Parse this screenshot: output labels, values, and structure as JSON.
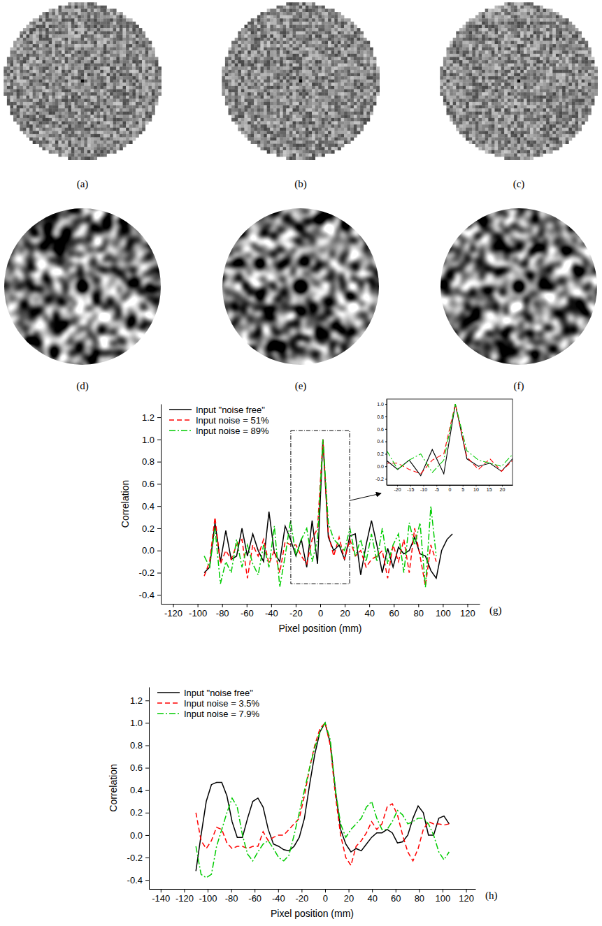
{
  "images": {
    "labels": [
      "(a)",
      "(b)",
      "(c)",
      "(d)",
      "(e)",
      "(f)"
    ]
  },
  "chart_data": [
    {
      "type": "line",
      "xlabel": "Pixel position (mm)",
      "ylabel": "Correlation",
      "annotations": [
        "(g)"
      ],
      "xlim": [
        -130,
        130
      ],
      "ylim": [
        -0.48,
        1.32
      ],
      "xticks": [
        -120,
        -100,
        -80,
        -60,
        -40,
        -20,
        0,
        20,
        40,
        60,
        80,
        100,
        120
      ],
      "yticks": [
        -0.4,
        -0.2,
        {
          "value": 0,
          "label": "0.0"
        },
        0.2,
        0.4,
        0.6,
        0.8,
        {
          "value": 1,
          "label": "1.0"
        },
        1.2
      ],
      "legend": "upper left",
      "series": [
        {
          "name": "Input \"noise free\"",
          "color": "#000000",
          "line_style": "solid",
          "x": [
            -94.6,
            -90.2,
            -85.8,
            -81.4,
            -77,
            -72.6,
            -68.2,
            -63.8,
            -59.4,
            -55,
            -50.6,
            -46.2,
            -41.8,
            -37.4,
            -33,
            -28.6,
            -24.2,
            -19.8,
            -15.4,
            -11,
            -6.6,
            -2.2,
            2.2,
            6.6,
            11,
            15.4,
            19.8,
            24.2,
            28.6,
            33,
            37.4,
            41.8,
            46.2,
            50.6,
            55,
            59.4,
            63.8,
            68.2,
            72.6,
            77,
            81.4,
            85.8,
            90.2,
            94.6,
            99,
            103.4,
            107.8
          ],
          "values": [
            -0.2,
            -0.15,
            0.25,
            -0.1,
            0.18,
            -0.08,
            -0.05,
            0.2,
            -0.05,
            0.15,
            0.0,
            -0.1,
            0.35,
            -0.02,
            -0.1,
            0.22,
            0.1,
            -0.05,
            0.1,
            -0.15,
            0.27,
            -0.12,
            1.0,
            0.12,
            0.0,
            0.05,
            -0.08,
            0.13,
            0.15,
            -0.22,
            0.05,
            0.27,
            0.05,
            -0.2,
            0.02,
            -0.15,
            0.03,
            -0.03,
            0.0,
            0.12,
            -0.03,
            -0.05,
            -0.18,
            -0.25,
            0.0,
            0.1,
            0.15
          ]
        },
        {
          "name": "Input noise = 51%",
          "color": "#ff0000",
          "line_style": "dashed",
          "x": [
            -94.6,
            -90.2,
            -85.8,
            -81.4,
            -77,
            -72.6,
            -68.2,
            -63.8,
            -59.4,
            -55,
            -50.6,
            -46.2,
            -41.8,
            -37.4,
            -33,
            -28.6,
            -24.2,
            -19.8,
            -15.4,
            -11,
            -6.6,
            -2.2,
            2.2,
            6.6,
            11,
            15.4,
            19.8,
            24.2,
            28.6,
            33,
            37.4,
            41.8,
            46.2,
            50.6,
            55,
            59.4,
            63.8,
            68.2,
            72.6,
            77,
            81.4,
            85.8,
            90.2,
            94.6
          ],
          "values": [
            -0.23,
            -0.1,
            0.3,
            -0.12,
            0.0,
            -0.08,
            0.05,
            0.1,
            -0.25,
            0.05,
            -0.05,
            0.1,
            -0.12,
            0.0,
            -0.2,
            0.08,
            0.05,
            0.05,
            -0.05,
            -0.12,
            0.1,
            0.2,
            1.0,
            0.15,
            -0.05,
            0.12,
            -0.08,
            0.1,
            -0.05,
            0.0,
            -0.15,
            -0.08,
            -0.05,
            0.0,
            -0.25,
            0.05,
            -0.1,
            0.1,
            -0.2,
            0.2,
            -0.05,
            -0.32,
            0.05,
            -0.1
          ]
        },
        {
          "name": "Input noise = 89%",
          "color": "#00cc00",
          "line_style": "dashdot",
          "x": [
            -94.6,
            -90.2,
            -85.8,
            -81.4,
            -77,
            -72.6,
            -68.2,
            -63.8,
            -59.4,
            -55,
            -50.6,
            -46.2,
            -41.8,
            -37.4,
            -33,
            -28.6,
            -24.2,
            -19.8,
            -15.4,
            -11,
            -6.6,
            -2.2,
            2.2,
            6.6,
            11,
            15.4,
            19.8,
            24.2,
            28.6,
            33,
            37.4,
            41.8,
            46.2,
            50.6,
            55,
            59.4,
            63.8,
            68.2,
            72.6,
            77,
            81.4,
            85.8,
            90.2,
            94.6
          ],
          "values": [
            -0.05,
            -0.15,
            0.2,
            -0.3,
            -0.1,
            -0.2,
            0.1,
            -0.15,
            0.05,
            -0.12,
            -0.22,
            0.05,
            -0.15,
            0.22,
            -0.33,
            -0.05,
            0.27,
            -0.05,
            0.1,
            0.2,
            -0.1,
            0.1,
            1.0,
            0.25,
            0.1,
            0.05,
            0.0,
            0.2,
            -0.05,
            0.1,
            -0.1,
            0.15,
            -0.1,
            0.2,
            -0.12,
            0.05,
            0.15,
            -0.2,
            0.25,
            0.05,
            0.25,
            -0.33,
            0.4,
            -0.05
          ]
        }
      ]
    },
    {
      "type": "line",
      "xlim": [
        -24,
        24
      ],
      "ylim": [
        -0.3,
        1.08
      ],
      "xticks": [
        -20,
        -15,
        -10,
        -5,
        0,
        5,
        10,
        15,
        20
      ],
      "yticks": [
        -0.2,
        {
          "value": 0,
          "label": "0.0"
        },
        0.2,
        0.4,
        0.6,
        0.8,
        {
          "value": 1,
          "label": "1.0"
        }
      ]
    },
    {
      "type": "line",
      "xlabel": "Pixel position (mm)",
      "ylabel": "Correlation",
      "annotations": [
        "(h)"
      ],
      "xlim": [
        -150,
        128
      ],
      "ylim": [
        -0.48,
        1.32
      ],
      "xticks": [
        -140,
        -120,
        -100,
        -80,
        -60,
        -40,
        -20,
        0,
        20,
        40,
        60,
        80,
        100,
        120
      ],
      "yticks": [
        -0.4,
        -0.2,
        {
          "value": 0,
          "label": "0.0"
        },
        0.2,
        0.4,
        0.6,
        0.8,
        {
          "value": 1,
          "label": "1.0"
        },
        1.2
      ],
      "legend": "upper left",
      "x": [
        -110,
        -105.6,
        -101.2,
        -96.8,
        -92.4,
        -88,
        -83.6,
        -79.2,
        -74.8,
        -70.4,
        -66,
        -61.6,
        -57.2,
        -52.8,
        -48.4,
        -44,
        -39.6,
        -35.2,
        -30.8,
        -26.4,
        -22,
        -17.6,
        -13.2,
        -8.8,
        -4.4,
        0,
        4.4,
        8.8,
        13.2,
        17.6,
        22,
        26.4,
        30.8,
        35.2,
        39.6,
        44,
        48.4,
        52.8,
        57.2,
        61.6,
        66,
        70.4,
        74.8,
        79.2,
        83.6,
        88,
        92.4,
        96.8,
        101.2,
        105.6
      ],
      "series": [
        {
          "name": "Input \"noise free\"",
          "color": "#000000",
          "line_style": "solid",
          "values": [
            -0.32,
            0.0,
            0.3,
            0.45,
            0.47,
            0.47,
            0.35,
            0.12,
            -0.02,
            -0.02,
            0.15,
            0.3,
            0.33,
            0.25,
            0.05,
            -0.08,
            -0.1,
            -0.13,
            -0.14,
            -0.1,
            -0.02,
            0.15,
            0.45,
            0.72,
            0.92,
            1.0,
            0.82,
            0.4,
            0.05,
            -0.08,
            -0.15,
            -0.12,
            -0.14,
            -0.08,
            -0.02,
            0.02,
            0.02,
            0.05,
            0.02,
            -0.07,
            -0.06,
            0.0,
            0.15,
            0.26,
            0.2,
            0.0,
            0.0,
            0.15,
            0.17,
            0.1
          ]
        },
        {
          "name": "Input noise = 3.5%",
          "color": "#ff0000",
          "line_style": "dashed",
          "values": [
            0.2,
            -0.05,
            -0.12,
            -0.05,
            0.07,
            0.05,
            -0.07,
            -0.12,
            -0.1,
            -0.1,
            -0.12,
            -0.1,
            -0.1,
            0.03,
            -0.05,
            -0.02,
            0.0,
            0.0,
            0.05,
            0.1,
            0.15,
            0.35,
            0.6,
            0.8,
            0.95,
            1.0,
            0.8,
            0.35,
            0.0,
            -0.2,
            -0.27,
            -0.1,
            -0.05,
            0.02,
            0.12,
            0.05,
            0.1,
            0.25,
            0.28,
            0.18,
            0.0,
            -0.15,
            -0.23,
            -0.12,
            0.05,
            0.12,
            0.1,
            0.1,
            0.09,
            0.1
          ]
        },
        {
          "name": "Input noise = 7.9%",
          "color": "#00cc00",
          "line_style": "dashdot",
          "values": [
            -0.1,
            -0.35,
            -0.38,
            -0.35,
            -0.1,
            0.05,
            0.2,
            0.33,
            0.25,
            0.0,
            -0.17,
            -0.23,
            -0.15,
            -0.08,
            -0.05,
            -0.12,
            -0.2,
            -0.23,
            -0.18,
            0.0,
            0.2,
            0.4,
            0.6,
            0.78,
            0.92,
            1.0,
            0.85,
            0.4,
            0.1,
            -0.02,
            0.05,
            0.1,
            0.15,
            0.25,
            0.3,
            0.15,
            0.05,
            0.05,
            0.12,
            0.22,
            0.18,
            0.1,
            0.12,
            0.15,
            0.15,
            0.1,
            0.0,
            -0.15,
            -0.22,
            -0.15
          ]
        }
      ]
    }
  ]
}
